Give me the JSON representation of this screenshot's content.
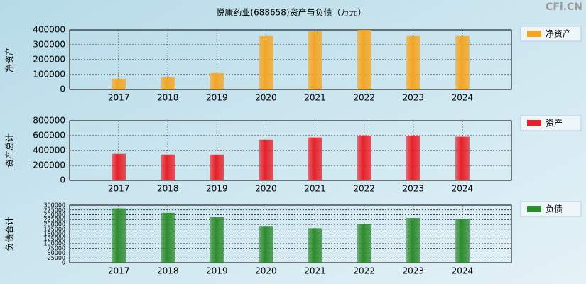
{
  "title": "悦康药业(688658)资产与负债（万元）",
  "watermark": "CFi.CN",
  "chart_data": [
    {
      "type": "bar",
      "ylabel": "净资产",
      "categories": [
        "2017",
        "2018",
        "2019",
        "2020",
        "2021",
        "2022",
        "2023",
        "2024"
      ],
      "series": [
        {
          "name": "净资产",
          "color": "#f5a623",
          "values": [
            72000,
            83000,
            110000,
            358000,
            390000,
            400000,
            358000,
            358000
          ]
        }
      ],
      "ylim": [
        0,
        400000
      ],
      "yticks": [
        0,
        100000,
        200000,
        300000,
        400000
      ],
      "grid": true
    },
    {
      "type": "bar",
      "ylabel": "资产总计",
      "categories": [
        "2017",
        "2018",
        "2019",
        "2020",
        "2021",
        "2022",
        "2023",
        "2024"
      ],
      "series": [
        {
          "name": "资产",
          "color": "#e8202a",
          "values": [
            355000,
            345000,
            345000,
            545000,
            575000,
            600000,
            600000,
            585000
          ]
        }
      ],
      "ylim": [
        0,
        800000
      ],
      "yticks": [
        0,
        200000,
        400000,
        600000,
        800000
      ],
      "grid": true
    },
    {
      "type": "bar",
      "ylabel": "负债合计",
      "categories": [
        "2017",
        "2018",
        "2019",
        "2020",
        "2021",
        "2022",
        "2023",
        "2024"
      ],
      "series": [
        {
          "name": "负债",
          "color": "#2e8b2e",
          "values": [
            283000,
            260000,
            237000,
            188000,
            180000,
            203000,
            233000,
            228000
          ]
        }
      ],
      "ylim": [
        0,
        300000
      ],
      "yticks": [
        0,
        25000,
        50000,
        75000,
        100000,
        125000,
        150000,
        175000,
        200000,
        225000,
        250000,
        275000,
        300000
      ],
      "grid": true
    }
  ]
}
